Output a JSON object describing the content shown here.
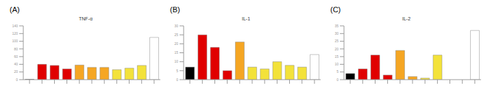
{
  "chart_data": [
    {
      "type": "bar",
      "title": "TNF-α",
      "annotations": [
        "(A)"
      ],
      "categories": [
        null,
        null,
        null,
        null,
        null,
        null,
        null,
        null,
        null,
        null,
        null
      ],
      "values": [
        1,
        40,
        37,
        28,
        38,
        32,
        32,
        26,
        30,
        37,
        110
      ],
      "colors": [
        "#000000",
        "#e00000",
        "#e00000",
        "#e00000",
        "#f5a623",
        "#f5a623",
        "#f5a623",
        "#f3e23a",
        "#f3e23a",
        "#f3e23a",
        "#ffffff"
      ],
      "ylim": [
        0,
        140
      ],
      "yticks": [
        0,
        20,
        40,
        60,
        80,
        100,
        120,
        140
      ],
      "grid": false
    },
    {
      "type": "bar",
      "title": "IL-1",
      "annotations": [
        "(B)"
      ],
      "categories": [
        null,
        null,
        null,
        null,
        null,
        null,
        null,
        null,
        null,
        null,
        null
      ],
      "values": [
        7,
        25,
        18,
        5,
        21,
        7,
        6,
        10,
        8,
        7,
        14
      ],
      "colors": [
        "#000000",
        "#e00000",
        "#e00000",
        "#e00000",
        "#f5a623",
        "#f3e23a",
        "#f3e23a",
        "#f3e23a",
        "#f3e23a",
        "#f3e23a",
        "#ffffff"
      ],
      "ylim": [
        0,
        30
      ],
      "yticks": [
        0,
        5,
        10,
        15,
        20,
        25,
        30
      ],
      "grid": false
    },
    {
      "type": "bar",
      "title": "IL-2",
      "annotations": [
        "(C)"
      ],
      "categories": [
        null,
        null,
        null,
        null,
        null,
        null,
        null,
        null,
        null,
        null,
        null
      ],
      "values": [
        4,
        7,
        16,
        3,
        19,
        2,
        1,
        16,
        0,
        0,
        32
      ],
      "colors": [
        "#000000",
        "#e00000",
        "#e00000",
        "#e00000",
        "#f5a623",
        "#f5a623",
        "#f3e23a",
        "#f3e23a",
        "#f3e23a",
        "#f3e23a",
        "#ffffff"
      ],
      "ylim": [
        0,
        35
      ],
      "yticks": [
        0,
        5,
        10,
        15,
        20,
        25,
        30,
        35
      ],
      "grid": false
    }
  ]
}
